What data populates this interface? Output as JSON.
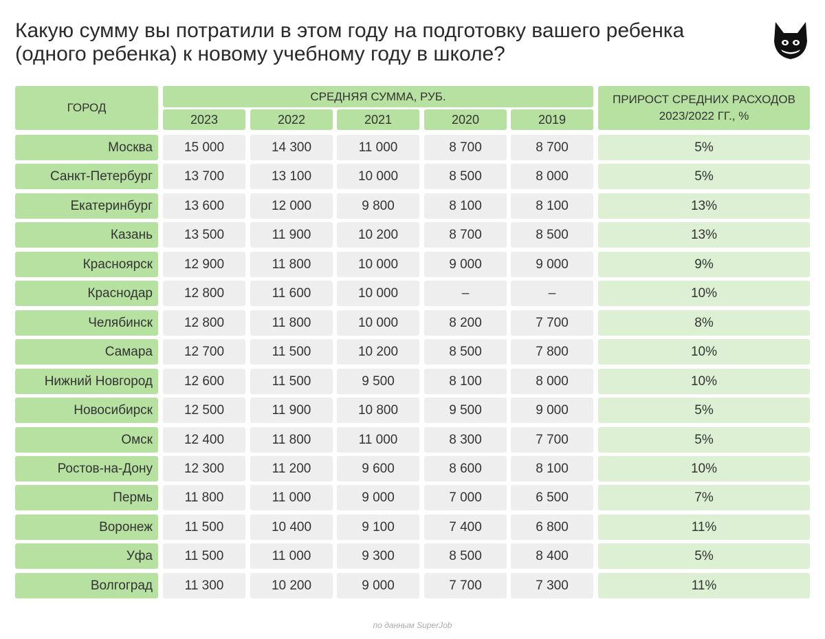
{
  "title": "Какую сумму вы потратили в этом году на подготовку вашего ребенка (одного ребенка) к новому учебному году в школе?",
  "source": "по данным SuperJob",
  "colors": {
    "header_green": "#b7e1a0",
    "growth_green": "#ddf0d3",
    "value_gray": "#eeeeee"
  },
  "chart_data": {
    "type": "table",
    "header": {
      "city": "ГОРОД",
      "avg_sum": "СРЕДНЯЯ СУММА, РУБ.",
      "growth_line1": "ПРИРОСТ СРЕДНИХ РАСХОДОВ",
      "growth_line2": "2023/2022 ГГ., %"
    },
    "years": [
      "2023",
      "2022",
      "2021",
      "2020",
      "2019"
    ],
    "rows": [
      {
        "city": "Москва",
        "values": [
          "15 000",
          "14 300",
          "11 000",
          "8 700",
          "8 700"
        ],
        "growth": "5%"
      },
      {
        "city": "Санкт-Петербург",
        "values": [
          "13 700",
          "13 100",
          "10 000",
          "8 500",
          "8 000"
        ],
        "growth": "5%"
      },
      {
        "city": "Екатеринбург",
        "values": [
          "13 600",
          "12 000",
          "9 800",
          "8 100",
          "8 100"
        ],
        "growth": "13%"
      },
      {
        "city": "Казань",
        "values": [
          "13 500",
          "11 900",
          "10 200",
          "8 700",
          "8 500"
        ],
        "growth": "13%"
      },
      {
        "city": "Красноярск",
        "values": [
          "12 900",
          "11 800",
          "10 000",
          "9 000",
          "9 000"
        ],
        "growth": "9%"
      },
      {
        "city": "Краснодар",
        "values": [
          "12 800",
          "11 600",
          "10 000",
          "–",
          "–"
        ],
        "growth": "10%"
      },
      {
        "city": "Челябинск",
        "values": [
          "12 800",
          "11 800",
          "10 000",
          "8 200",
          "7 700"
        ],
        "growth": "8%"
      },
      {
        "city": "Самара",
        "values": [
          "12 700",
          "11 500",
          "10 200",
          "8 500",
          "7 800"
        ],
        "growth": "10%"
      },
      {
        "city": "Нижний Новгород",
        "values": [
          "12 600",
          "11 500",
          "9 500",
          "8 100",
          "8 000"
        ],
        "growth": "10%"
      },
      {
        "city": "Новосибирск",
        "values": [
          "12 500",
          "11 900",
          "10 800",
          "9 500",
          "9 000"
        ],
        "growth": "5%"
      },
      {
        "city": "Омск",
        "values": [
          "12 400",
          "11 800",
          "11 000",
          "8 300",
          "7 700"
        ],
        "growth": "5%"
      },
      {
        "city": "Ростов-на-Дону",
        "values": [
          "12 300",
          "11 200",
          "9 600",
          "8 600",
          "8 100"
        ],
        "growth": "10%"
      },
      {
        "city": "Пермь",
        "values": [
          "11 800",
          "11 000",
          "9 000",
          "7 000",
          "6 500"
        ],
        "growth": "7%"
      },
      {
        "city": "Воронеж",
        "values": [
          "11 500",
          "10 400",
          "9 100",
          "7 400",
          "6 800"
        ],
        "growth": "11%"
      },
      {
        "city": "Уфа",
        "values": [
          "11 500",
          "11 000",
          "9 300",
          "8 500",
          "8 400"
        ],
        "growth": "5%"
      },
      {
        "city": "Волгоград",
        "values": [
          "11 300",
          "10 200",
          "9 000",
          "7 700",
          "7 300"
        ],
        "growth": "11%"
      }
    ]
  }
}
